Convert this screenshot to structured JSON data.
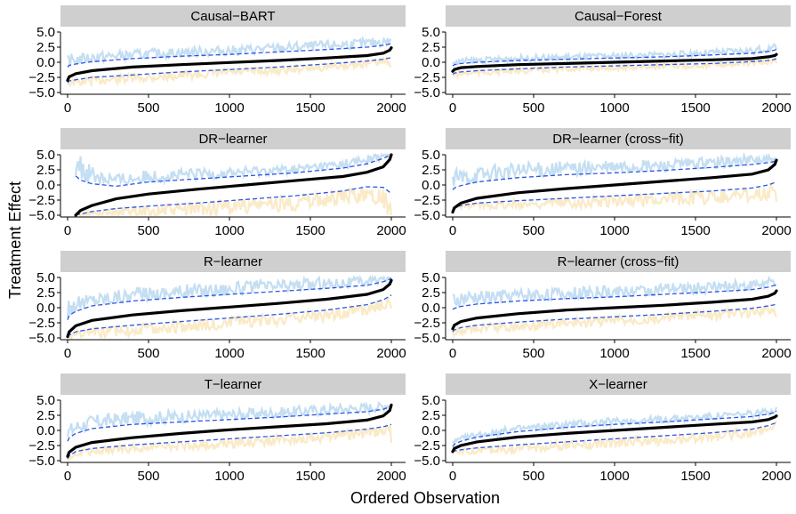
{
  "figure": {
    "ylabel": "Treatment Effect",
    "xlabel": "Ordered Observation"
  },
  "colors": {
    "panel_strip": "#cfcfcf",
    "estimate_line": "#000000",
    "interval_dashed": "#2a55e8",
    "upper_band": "#9cc8ea",
    "lower_band": "#f6dca0"
  },
  "chart_data": [
    {
      "type": "line",
      "title": "Causal−BART",
      "xlim": [
        0,
        2000
      ],
      "ylim": [
        -5,
        5
      ],
      "x_ticks": [
        "0",
        "500",
        "1000",
        "1500",
        "2000"
      ],
      "y_ticks": [
        "−5.0",
        "−2.5",
        "0.0",
        "2.5",
        "5.0"
      ],
      "x": [
        0,
        10,
        50,
        150,
        400,
        700,
        1000,
        1300,
        1600,
        1850,
        1950,
        1990,
        2000
      ],
      "series": [
        {
          "role": "estimate",
          "values": [
            -3.0,
            -2.4,
            -1.9,
            -1.4,
            -0.8,
            -0.4,
            -0.05,
            0.3,
            0.7,
            1.1,
            1.5,
            2.0,
            2.4
          ]
        },
        {
          "role": "upper",
          "values": [
            -0.8,
            -0.5,
            -0.3,
            0.1,
            0.6,
            1.0,
            1.3,
            1.7,
            2.1,
            2.5,
            2.8,
            3.0,
            3.1
          ]
        },
        {
          "role": "lower",
          "values": [
            -3.4,
            -3.1,
            -2.9,
            -2.5,
            -2.1,
            -1.6,
            -1.2,
            -0.8,
            -0.3,
            0.2,
            0.5,
            0.7,
            0.8
          ]
        }
      ]
    },
    {
      "type": "line",
      "title": "Causal−Forest",
      "xlim": [
        0,
        2000
      ],
      "ylim": [
        -5,
        5
      ],
      "x_ticks": [
        "0",
        "500",
        "1000",
        "1500",
        "2000"
      ],
      "y_ticks": [
        "−5.0",
        "−2.5",
        "0.0",
        "2.5",
        "5.0"
      ],
      "x": [
        0,
        10,
        50,
        150,
        400,
        700,
        1000,
        1300,
        1600,
        1850,
        1950,
        1990,
        2000
      ],
      "series": [
        {
          "role": "estimate",
          "values": [
            -1.5,
            -1.2,
            -0.9,
            -0.7,
            -0.4,
            -0.2,
            0.0,
            0.2,
            0.4,
            0.6,
            0.9,
            1.1,
            1.3
          ]
        },
        {
          "role": "upper",
          "values": [
            -0.6,
            -0.4,
            -0.2,
            0.0,
            0.3,
            0.5,
            0.7,
            0.9,
            1.2,
            1.5,
            1.8,
            2.0,
            2.2
          ]
        },
        {
          "role": "lower",
          "values": [
            -2.0,
            -1.8,
            -1.6,
            -1.4,
            -1.1,
            -0.8,
            -0.6,
            -0.4,
            -0.2,
            0.1,
            0.3,
            0.5,
            0.6
          ]
        }
      ]
    },
    {
      "type": "line",
      "title": "DR−learner",
      "xlim": [
        0,
        2000
      ],
      "ylim": [
        -5,
        5
      ],
      "x_ticks": [
        "0",
        "500",
        "1000",
        "1500",
        "2000"
      ],
      "y_ticks": [
        "−5.0",
        "−2.5",
        "0.0",
        "2.5",
        "5.0"
      ],
      "x": [
        50,
        80,
        150,
        300,
        500,
        800,
        1100,
        1400,
        1700,
        1850,
        1950,
        1990,
        2000
      ],
      "series": [
        {
          "role": "estimate",
          "values": [
            -5.0,
            -4.2,
            -3.4,
            -2.3,
            -1.5,
            -0.7,
            0.0,
            0.7,
            1.4,
            2.1,
            3.0,
            4.2,
            5.0
          ]
        },
        {
          "role": "upper",
          "values": [
            1.5,
            0.8,
            0.2,
            -0.2,
            0.5,
            1.0,
            1.5,
            2.0,
            2.8,
            3.5,
            4.4,
            4.9,
            5.0
          ]
        },
        {
          "role": "lower",
          "values": [
            -5.0,
            -4.8,
            -4.4,
            -3.9,
            -3.5,
            -3.0,
            -2.4,
            -1.8,
            -1.0,
            -0.3,
            -0.4,
            -1.2,
            -1.4
          ]
        }
      ]
    },
    {
      "type": "line",
      "title": "DR−learner (cross−fit)",
      "xlim": [
        0,
        2000
      ],
      "ylim": [
        -5,
        5
      ],
      "x_ticks": [
        "0",
        "500",
        "1000",
        "1500",
        "2000"
      ],
      "y_ticks": [
        "−5.0",
        "−2.5",
        "0.0",
        "2.5",
        "5.0"
      ],
      "x": [
        0,
        10,
        50,
        150,
        400,
        700,
        1000,
        1300,
        1600,
        1850,
        1950,
        1990,
        2000
      ],
      "series": [
        {
          "role": "estimate",
          "values": [
            -4.5,
            -3.8,
            -3.0,
            -2.2,
            -1.3,
            -0.6,
            0.0,
            0.6,
            1.2,
            1.8,
            2.5,
            3.4,
            4.1
          ]
        },
        {
          "role": "upper",
          "values": [
            -0.8,
            -0.5,
            -0.1,
            0.5,
            1.2,
            1.7,
            2.0,
            2.4,
            2.9,
            3.4,
            3.7,
            3.9,
            4.0
          ]
        },
        {
          "role": "lower",
          "values": [
            -4.2,
            -3.8,
            -3.4,
            -3.0,
            -2.6,
            -2.2,
            -1.8,
            -1.4,
            -1.0,
            -0.5,
            0.0,
            0.4,
            0.5
          ]
        }
      ]
    },
    {
      "type": "line",
      "title": "R−learner",
      "xlim": [
        0,
        2000
      ],
      "ylim": [
        -5,
        5
      ],
      "x_ticks": [
        "0",
        "500",
        "1000",
        "1500",
        "2000"
      ],
      "y_ticks": [
        "−5.0",
        "−2.5",
        "0.0",
        "2.5",
        "5.0"
      ],
      "x": [
        0,
        10,
        50,
        150,
        400,
        700,
        1000,
        1300,
        1600,
        1850,
        1950,
        1990,
        2000
      ],
      "series": [
        {
          "role": "estimate",
          "values": [
            -4.8,
            -4.0,
            -3.0,
            -2.1,
            -1.2,
            -0.5,
            0.1,
            0.7,
            1.4,
            2.2,
            3.0,
            3.9,
            4.5
          ]
        },
        {
          "role": "upper",
          "values": [
            -2.0,
            -1.3,
            -0.6,
            0.3,
            1.1,
            1.7,
            2.2,
            2.7,
            3.2,
            3.7,
            4.3,
            4.7,
            4.9
          ]
        },
        {
          "role": "lower",
          "values": [
            -4.8,
            -4.5,
            -4.0,
            -3.5,
            -2.9,
            -2.3,
            -1.7,
            -1.1,
            -0.4,
            0.5,
            1.3,
            1.9,
            2.1
          ]
        }
      ]
    },
    {
      "type": "line",
      "title": "R−learner (cross−fit)",
      "xlim": [
        0,
        2000
      ],
      "ylim": [
        -5,
        5
      ],
      "x_ticks": [
        "0",
        "500",
        "1000",
        "1500",
        "2000"
      ],
      "y_ticks": [
        "−5.0",
        "−2.5",
        "0.0",
        "2.5",
        "5.0"
      ],
      "x": [
        0,
        10,
        50,
        150,
        400,
        700,
        1000,
        1300,
        1600,
        1850,
        1950,
        1990,
        2000
      ],
      "series": [
        {
          "role": "estimate",
          "values": [
            -3.5,
            -2.9,
            -2.3,
            -1.7,
            -1.0,
            -0.4,
            0.0,
            0.4,
            0.9,
            1.4,
            1.9,
            2.4,
            2.8
          ]
        },
        {
          "role": "upper",
          "values": [
            -0.3,
            -0.1,
            0.2,
            0.6,
            1.1,
            1.5,
            1.8,
            2.2,
            2.6,
            3.0,
            3.4,
            3.7,
            3.8
          ]
        },
        {
          "role": "lower",
          "values": [
            -4.0,
            -3.7,
            -3.3,
            -2.9,
            -2.4,
            -1.9,
            -1.5,
            -1.1,
            -0.6,
            -0.1,
            0.3,
            0.5,
            0.6
          ]
        }
      ]
    },
    {
      "type": "line",
      "title": "T−learner",
      "xlim": [
        0,
        2000
      ],
      "ylim": [
        -5,
        5
      ],
      "x_ticks": [
        "0",
        "500",
        "1000",
        "1500",
        "2000"
      ],
      "y_ticks": [
        "−5.0",
        "−2.5",
        "0.0",
        "2.5",
        "5.0"
      ],
      "x": [
        0,
        10,
        50,
        150,
        400,
        700,
        1000,
        1300,
        1600,
        1850,
        1950,
        1990,
        2000
      ],
      "series": [
        {
          "role": "estimate",
          "values": [
            -4.3,
            -3.6,
            -2.8,
            -2.0,
            -1.2,
            -0.5,
            0.1,
            0.6,
            1.1,
            1.7,
            2.4,
            3.3,
            4.2
          ]
        },
        {
          "role": "upper",
          "values": [
            -1.8,
            -1.2,
            -0.5,
            0.3,
            1.0,
            1.4,
            1.8,
            2.2,
            2.7,
            3.1,
            3.5,
            3.9,
            4.1
          ]
        },
        {
          "role": "lower",
          "values": [
            -4.7,
            -4.2,
            -3.5,
            -3.0,
            -2.4,
            -1.9,
            -1.4,
            -0.9,
            -0.4,
            0.2,
            0.6,
            0.9,
            1.0
          ]
        }
      ]
    },
    {
      "type": "line",
      "title": "X−learner",
      "xlim": [
        0,
        2000
      ],
      "ylim": [
        -5,
        5
      ],
      "x_ticks": [
        "0",
        "500",
        "1000",
        "1500",
        "2000"
      ],
      "y_ticks": [
        "−5.0",
        "−2.5",
        "0.0",
        "2.5",
        "5.0"
      ],
      "x": [
        0,
        10,
        50,
        150,
        400,
        700,
        1000,
        1300,
        1600,
        1850,
        1950,
        1990,
        2000
      ],
      "series": [
        {
          "role": "estimate",
          "values": [
            -3.5,
            -3.0,
            -2.5,
            -1.9,
            -1.1,
            -0.5,
            0.0,
            0.5,
            1.0,
            1.4,
            1.8,
            2.2,
            2.4
          ]
        },
        {
          "role": "upper",
          "values": [
            -2.7,
            -2.3,
            -1.8,
            -1.1,
            -0.2,
            0.5,
            1.0,
            1.4,
            1.9,
            2.3,
            2.7,
            3.0,
            3.2
          ]
        },
        {
          "role": "lower",
          "values": [
            -3.6,
            -3.4,
            -3.2,
            -2.9,
            -2.4,
            -1.9,
            -1.4,
            -0.9,
            -0.4,
            0.2,
            0.8,
            1.2,
            1.4
          ]
        }
      ]
    }
  ]
}
